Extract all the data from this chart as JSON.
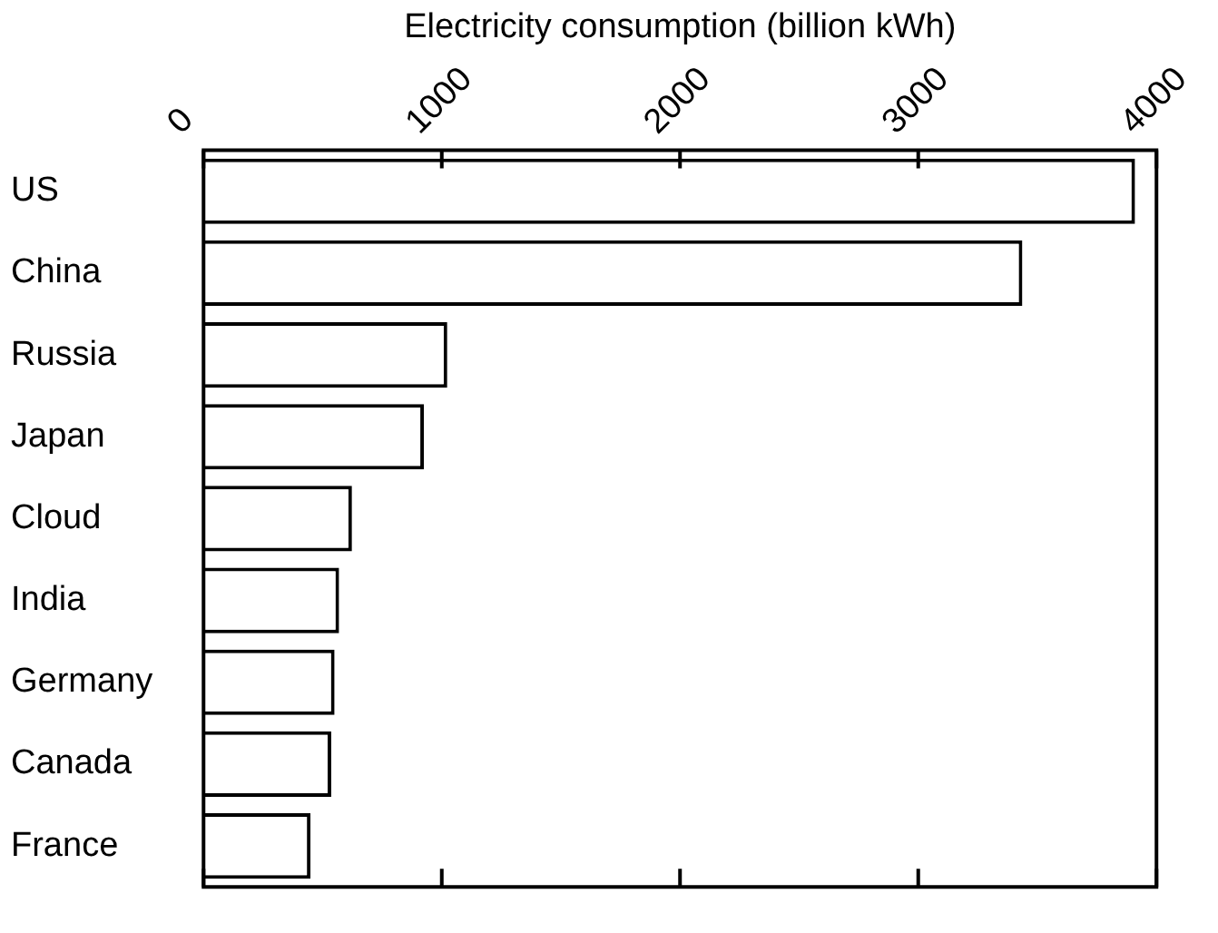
{
  "chart_data": {
    "type": "bar",
    "orientation": "horizontal",
    "xlabel": "Electricity consumption (billion kWh)",
    "categories": [
      "US",
      "China",
      "Russia",
      "Japan",
      "Cloud",
      "India",
      "Germany",
      "Canada",
      "France"
    ],
    "values": [
      3910,
      3437,
      1023,
      925,
      623,
      569,
      550,
      536,
      449
    ],
    "color": "#ffffff",
    "xlim": [
      0,
      4000
    ],
    "xticks": [
      0,
      1000,
      2000,
      3000,
      4000
    ],
    "grid": false,
    "legend": false
  }
}
